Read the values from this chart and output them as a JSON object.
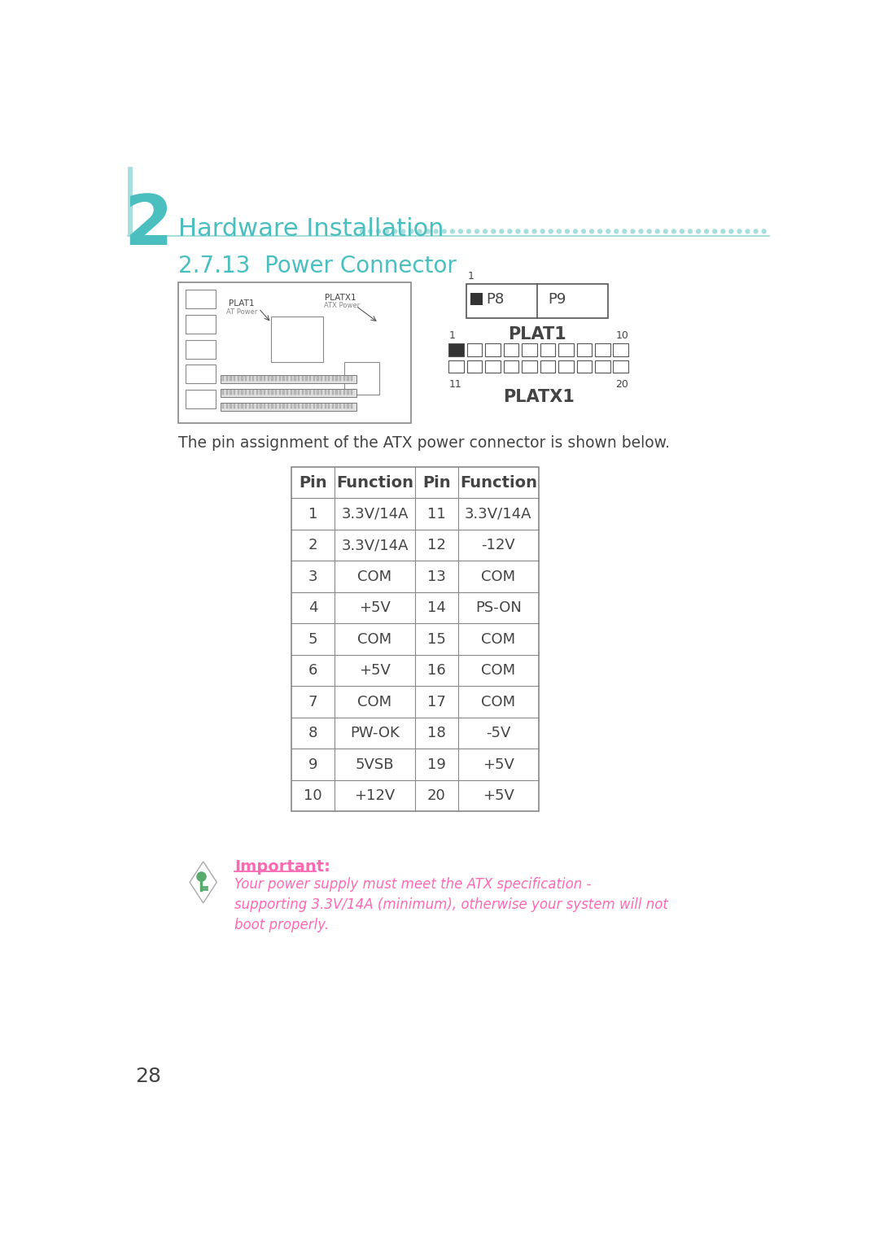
{
  "page_bg": "#ffffff",
  "teal_color": "#4BBFBF",
  "light_teal": "#A8DEDE",
  "gray_text": "#888888",
  "dark_text": "#444444",
  "pink_text": "#FF69B4",
  "chapter_num": "2",
  "chapter_title": "Hardware Installation",
  "section_title": "2.7.13  Power Connector",
  "table_desc": "The pin assignment of the ATX power connector is shown below.",
  "pin_data": [
    [
      "1",
      "3.3V/14A",
      "11",
      "3.3V/14A"
    ],
    [
      "2",
      "3.3V/14A",
      "12",
      "-12V"
    ],
    [
      "3",
      "COM",
      "13",
      "COM"
    ],
    [
      "4",
      "+5V",
      "14",
      "PS-ON"
    ],
    [
      "5",
      "COM",
      "15",
      "COM"
    ],
    [
      "6",
      "+5V",
      "16",
      "COM"
    ],
    [
      "7",
      "COM",
      "17",
      "COM"
    ],
    [
      "8",
      "PW-OK",
      "18",
      "-5V"
    ],
    [
      "9",
      "5VSB",
      "19",
      "+5V"
    ],
    [
      "10",
      "+12V",
      "20",
      "+5V"
    ]
  ],
  "col_headers": [
    "Pin",
    "Function",
    "Pin",
    "Function"
  ],
  "important_label": "Important:",
  "important_text_line1": "Your power supply must meet the ATX specification -",
  "important_text_line2": "supporting 3.3V/14A (minimum), otherwise your system will not",
  "important_text_line3": "boot properly.",
  "page_num": "28",
  "plat1_label": "PLAT1",
  "platx1_label": "PLATX1",
  "at_power": "AT Power",
  "atx_power": "ATX Power",
  "p8_label": "P8",
  "p9_label": "P9"
}
